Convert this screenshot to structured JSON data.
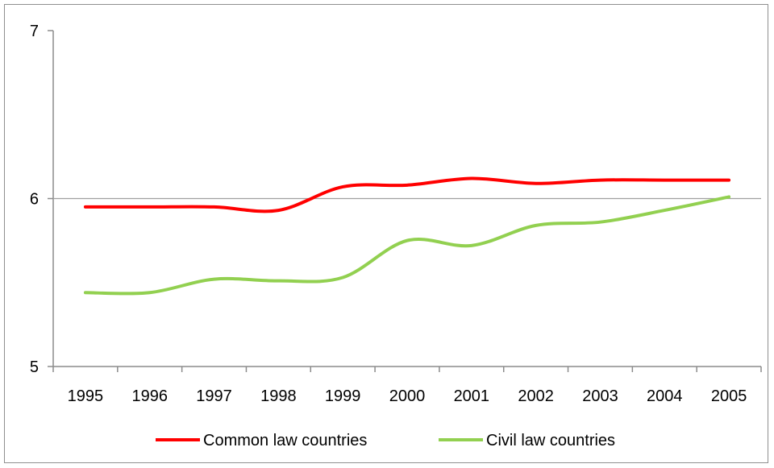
{
  "chart_data": {
    "type": "line",
    "title": "",
    "xlabel": "",
    "ylabel": "",
    "x": [
      "1995",
      "1996",
      "1997",
      "1998",
      "1999",
      "2000",
      "2001",
      "2002",
      "2003",
      "2004",
      "2005"
    ],
    "ylim": [
      5,
      7
    ],
    "yticks": [
      "5",
      "6",
      "7"
    ],
    "series": [
      {
        "name": "Common law countries",
        "color": "#ff0000",
        "values": [
          5.95,
          5.95,
          5.95,
          5.93,
          6.07,
          6.08,
          6.12,
          6.09,
          6.11,
          6.11,
          6.11
        ]
      },
      {
        "name": "Civil law countries",
        "color": "#92d050",
        "values": [
          5.44,
          5.44,
          5.52,
          5.51,
          5.53,
          5.75,
          5.72,
          5.84,
          5.86,
          5.93,
          6.01
        ]
      }
    ],
    "reference_line": {
      "value": 6,
      "color": "#a0a0a0"
    },
    "grid": false,
    "legend_position": "bottom"
  }
}
